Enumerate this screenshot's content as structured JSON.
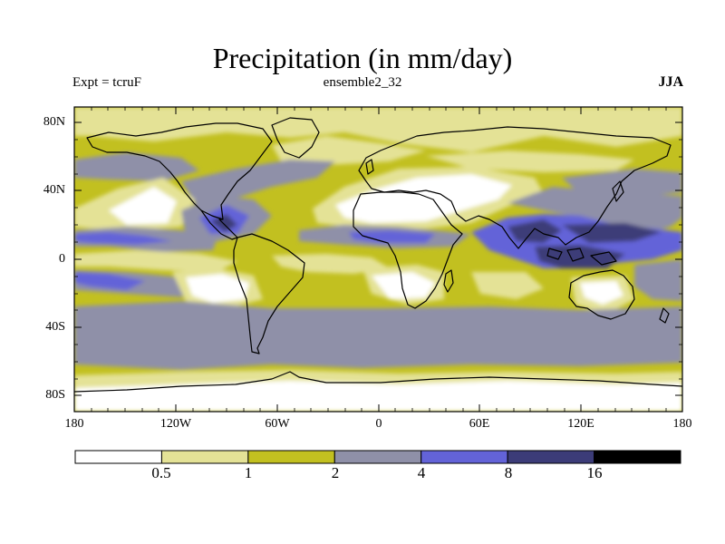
{
  "figure": {
    "title": "Precipitation (in mm/day)",
    "left_label": "Expt = tcruF",
    "center_label": "ensemble2_32",
    "right_label": "JJA"
  },
  "axes": {
    "y_ticks": [
      "80N",
      "40N",
      "0",
      "40S",
      "80S"
    ],
    "x_ticks": [
      "180",
      "120W",
      "60W",
      "0",
      "60E",
      "120E",
      "180"
    ]
  },
  "colorbar": {
    "colors": [
      "#ffffff",
      "#e4e296",
      "#c2c020",
      "#8f90a8",
      "#6363d8",
      "#3c3c78",
      "#000000"
    ],
    "labels": [
      "0.5",
      "1",
      "2",
      "4",
      "8",
      "16"
    ]
  }
}
